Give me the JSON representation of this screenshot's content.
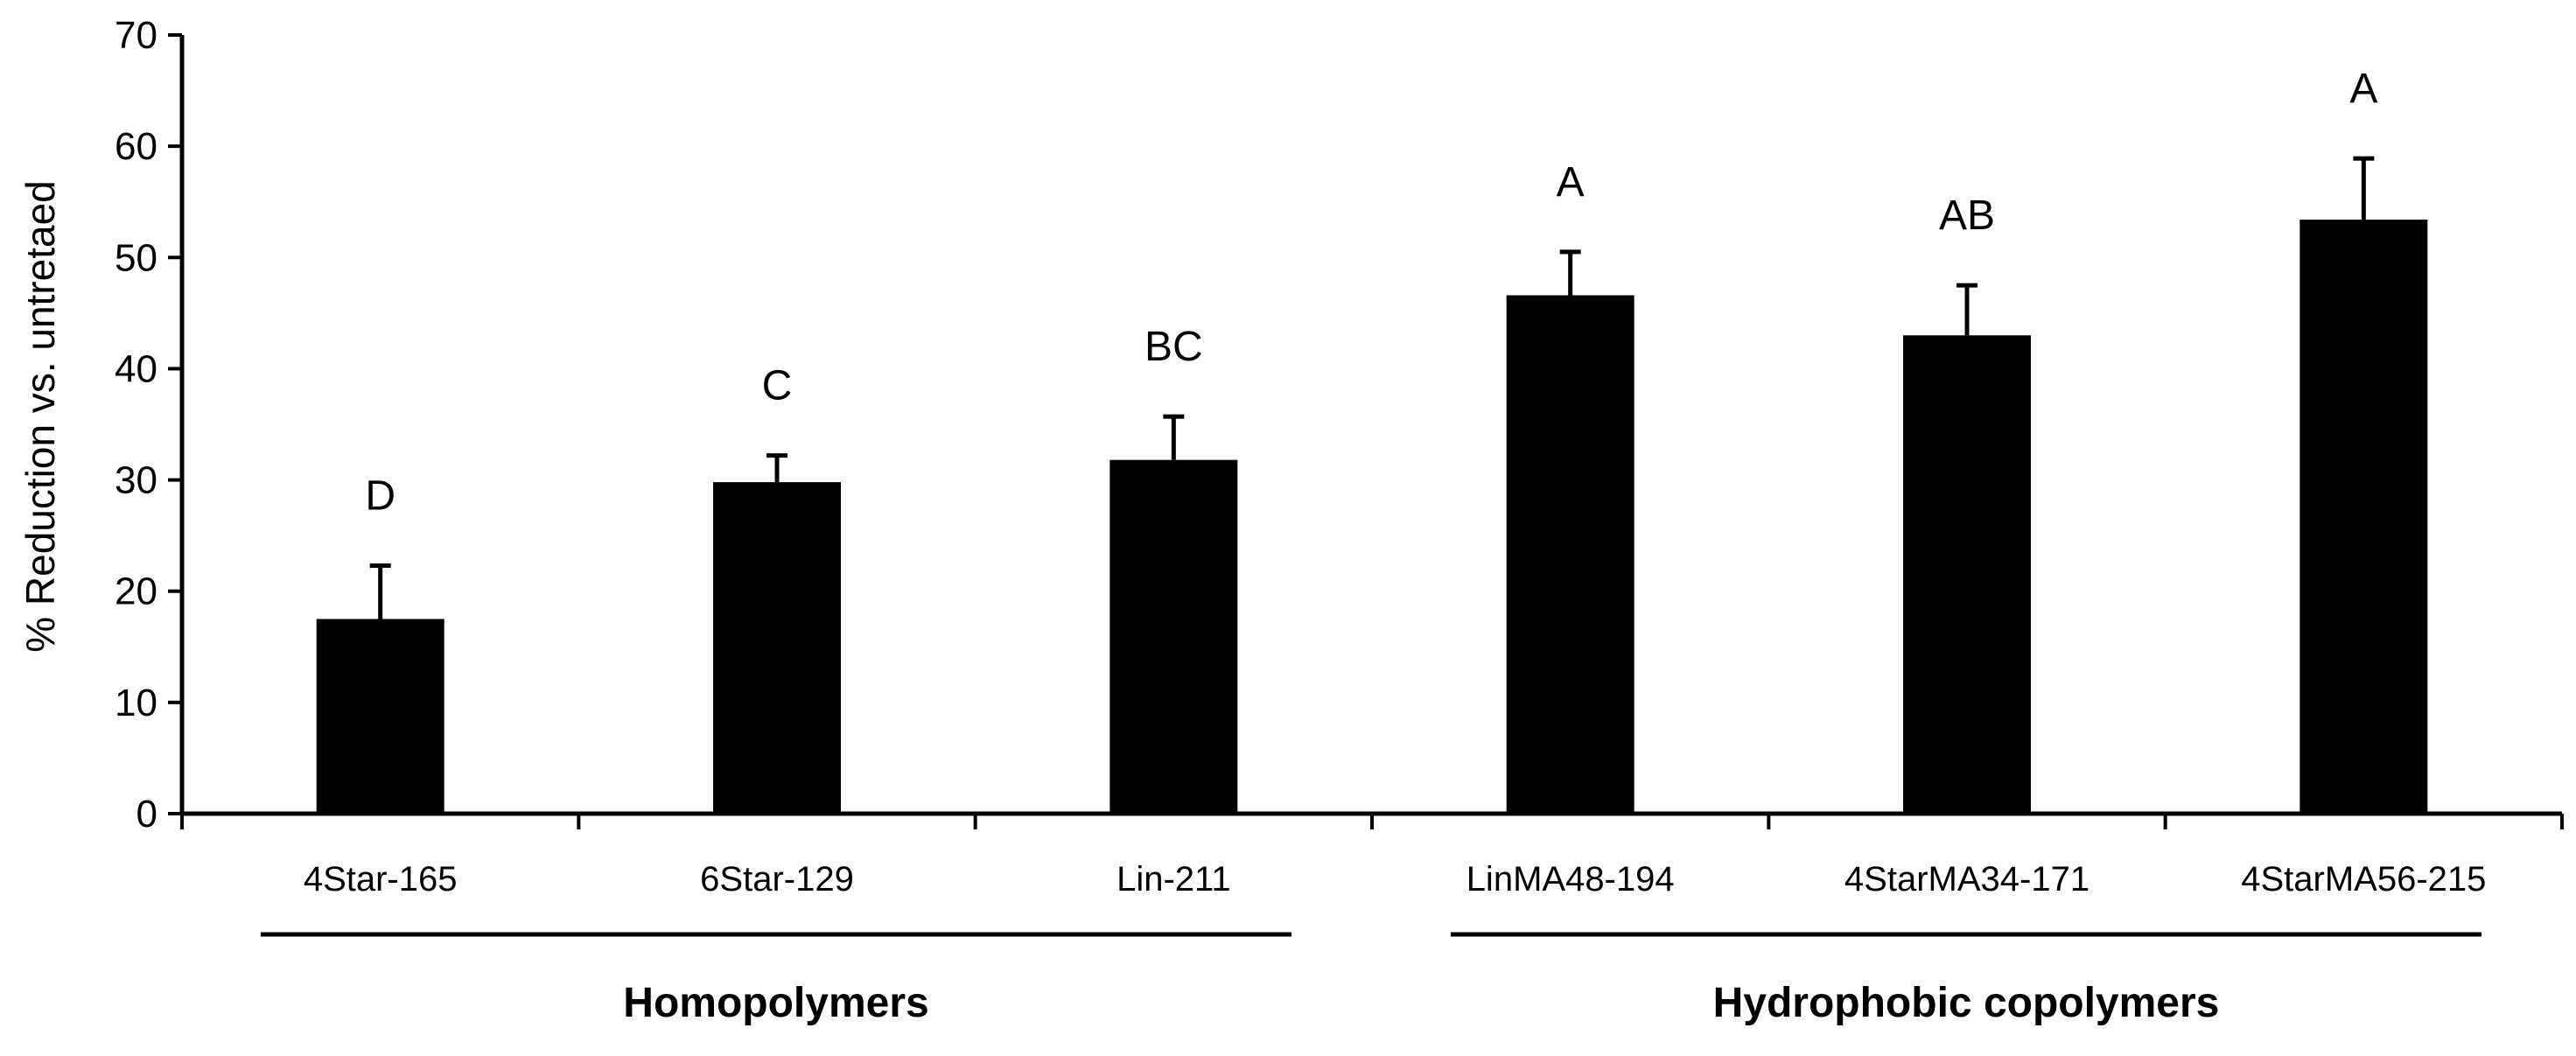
{
  "chart_data": {
    "type": "bar",
    "title": "",
    "xlabel": "",
    "ylabel": "% Reduction vs. untretaed",
    "ylim": [
      0,
      70
    ],
    "yticks": [
      0,
      10,
      20,
      30,
      40,
      50,
      60,
      70
    ],
    "grid": false,
    "legend": "none",
    "bar_color": "#000000",
    "categories": [
      "4Star-165",
      "6Star-129",
      "Lin-211",
      "LinMA48-194",
      "4StarMA34-171",
      "4StarMA56-215"
    ],
    "values": [
      17.5,
      29.8,
      31.8,
      46.6,
      43.0,
      53.4
    ],
    "error_upper": [
      4.8,
      2.4,
      3.9,
      3.9,
      4.5,
      5.5
    ],
    "significance_letters": [
      "D",
      "C",
      "BC",
      "A",
      "AB",
      "A"
    ],
    "groups": [
      {
        "label": "Homopolymers",
        "categories": [
          "4Star-165",
          "6Star-129",
          "Lin-211"
        ]
      },
      {
        "label": "Hydrophobic copolymers",
        "categories": [
          "LinMA48-194",
          "4StarMA34-171",
          "4StarMA56-215"
        ]
      }
    ]
  }
}
